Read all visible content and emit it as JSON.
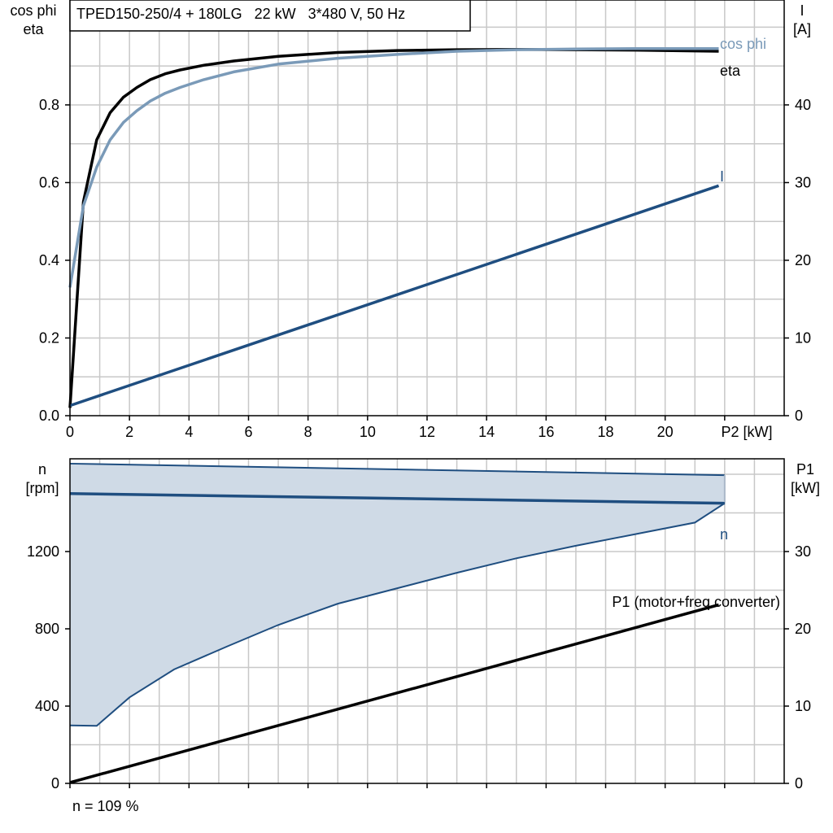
{
  "chart_data": [
    {
      "type": "line",
      "title": "TPED150-250/4 + 180LG   22 kW   3*480 V, 50 Hz",
      "xlabel": "P2 [kW]",
      "ylabel_left_line1": "cos phi",
      "ylabel_left_line2": "eta",
      "ylabel_right_line1": "I",
      "ylabel_right_line2": "[A]",
      "xlim": [
        0,
        24
      ],
      "ylim_left": [
        0,
        1.07
      ],
      "ylim_right": [
        0,
        53.5
      ],
      "x_ticks": [
        "0",
        "2",
        "4",
        "6",
        "8",
        "10",
        "12",
        "14",
        "16",
        "18",
        "20"
      ],
      "y_ticks_left": [
        "0.0",
        "0.2",
        "0.4",
        "0.6",
        "0.8"
      ],
      "y_ticks_right": [
        "0",
        "10",
        "20",
        "30",
        "40"
      ],
      "grid": true,
      "series": [
        {
          "name": "eta",
          "axis": "left",
          "color": "#000000",
          "x": [
            0,
            0.45,
            0.9,
            1.35,
            1.8,
            2.25,
            2.7,
            3.2,
            3.7,
            4.5,
            5.5,
            7,
            9,
            11,
            13,
            15,
            17,
            19,
            21,
            21.8
          ],
          "y": [
            0.02,
            0.55,
            0.71,
            0.78,
            0.82,
            0.845,
            0.865,
            0.88,
            0.89,
            0.902,
            0.913,
            0.925,
            0.935,
            0.94,
            0.942,
            0.943,
            0.942,
            0.941,
            0.939,
            0.938
          ]
        },
        {
          "name": "cos phi",
          "axis": "left",
          "color": "#7a9ab8",
          "x": [
            0,
            0.45,
            0.9,
            1.35,
            1.8,
            2.25,
            2.7,
            3.2,
            3.7,
            4.5,
            5.5,
            7,
            9,
            11,
            13,
            15,
            17,
            19,
            21,
            21.8
          ],
          "y": [
            0.33,
            0.54,
            0.64,
            0.71,
            0.755,
            0.785,
            0.81,
            0.83,
            0.845,
            0.865,
            0.885,
            0.905,
            0.92,
            0.93,
            0.938,
            0.942,
            0.944,
            0.945,
            0.945,
            0.945
          ]
        },
        {
          "name": "I",
          "axis": "right",
          "color": "#1f4e80",
          "x": [
            0,
            21.8
          ],
          "y": [
            1.3,
            29.6
          ]
        }
      ]
    },
    {
      "type": "line",
      "xlabel": "",
      "ylabel_left_line1": "n",
      "ylabel_left_line2": "[rpm]",
      "ylabel_right_line1": "P1",
      "ylabel_right_line2": "[kW]",
      "xlim": [
        0,
        24
      ],
      "ylim_left": [
        0,
        1680
      ],
      "ylim_right": [
        0,
        42
      ],
      "y_ticks_left": [
        "0",
        "400",
        "800",
        "1200"
      ],
      "y_ticks_right": [
        "0",
        "10",
        "20",
        "30"
      ],
      "grid": true,
      "footnote": "n = 109 %",
      "band": {
        "color": "#cfdae6",
        "edge_color": "#1f4e80",
        "upper": {
          "x": [
            0,
            22
          ],
          "y": [
            1655,
            1595
          ]
        },
        "lower": {
          "x": [
            0,
            0.9,
            2,
            3.5,
            5.3,
            7,
            9,
            11,
            13,
            15,
            17,
            19,
            21,
            22
          ],
          "y": [
            300,
            298,
            445,
            590,
            710,
            820,
            930,
            1010,
            1090,
            1165,
            1230,
            1290,
            1350,
            1450
          ]
        }
      },
      "series": [
        {
          "name": "n",
          "axis": "left",
          "color": "#1f4e80",
          "x": [
            0,
            22
          ],
          "y": [
            1500,
            1450
          ]
        },
        {
          "name": "P1 (motor+freq.converter)",
          "axis": "right",
          "color": "#000000",
          "x": [
            0,
            21.8
          ],
          "y": [
            0.1,
            23.1
          ]
        }
      ]
    }
  ]
}
